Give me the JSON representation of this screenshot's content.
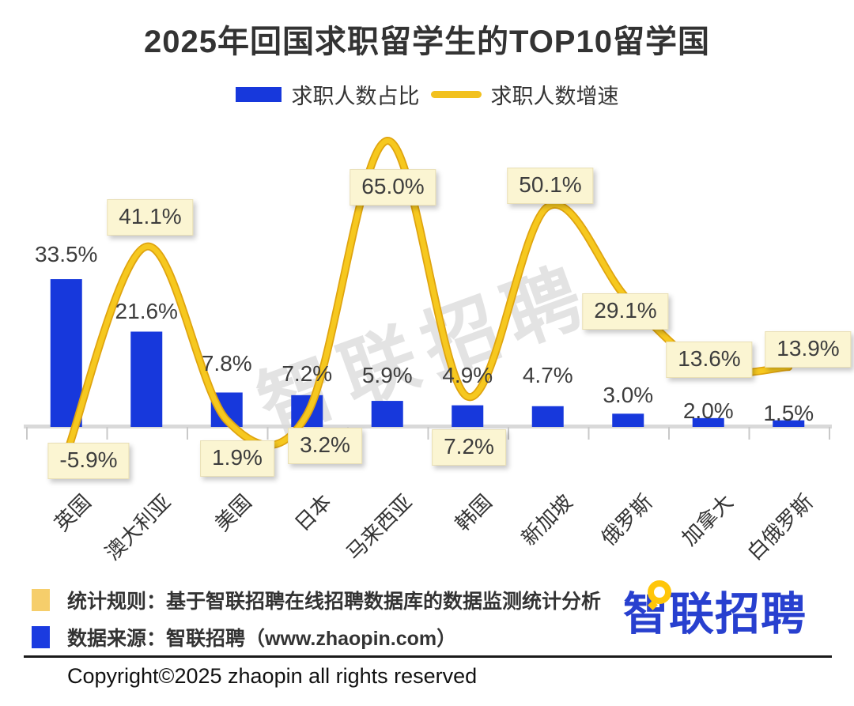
{
  "title": "2025年回国求职留学生的TOP10留学国",
  "legend": {
    "bar_label": "求职人数占比",
    "line_label": "求职人数增速"
  },
  "watermark": "智联招聘",
  "chart_data": {
    "type": "bar",
    "subtype": "combo-bar-line",
    "title": "2025年回国求职留学生的TOP10留学国",
    "categories": [
      "英国",
      "澳大利亚",
      "美国",
      "日本",
      "马来西亚",
      "韩国",
      "新加坡",
      "俄罗斯",
      "加拿大",
      "白俄罗斯"
    ],
    "series": [
      {
        "name": "求职人数占比",
        "type": "bar",
        "unit": "%",
        "values": [
          33.5,
          21.6,
          7.8,
          7.2,
          5.9,
          4.9,
          4.7,
          3.0,
          2.0,
          1.5
        ]
      },
      {
        "name": "求职人数增速",
        "type": "line",
        "unit": "%",
        "values": [
          -5.9,
          41.1,
          1.9,
          3.2,
          65.0,
          7.2,
          50.1,
          29.1,
          13.6,
          13.9
        ]
      }
    ],
    "value_label_format": "one-decimal-percent",
    "xlabel": "",
    "ylabel": "",
    "axes_visible": false,
    "gridlines": false,
    "legend_position": "top"
  },
  "colors": {
    "bar_blue": "#1738DC",
    "line_gold": "#F6C81F",
    "line_gold_dark": "#DFA40F",
    "label_box_bg": "#FBF5D2",
    "label_box_border": "#E9DFB5",
    "axis_gray": "#D9D9D9",
    "tick_gray": "#C9C9C9",
    "title_text": "#333333",
    "logo_blue": "#2840CF",
    "note_yellow": "#F6CE6B",
    "note_blue": "#1B3BE0"
  },
  "notes": {
    "rule": "统计规则：基于智联招聘在线招聘数据库的数据监测统计分析",
    "source": "数据来源：智联招聘（www.zhaopin.com）"
  },
  "logo": {
    "text": "智联招聘"
  },
  "copyright": "Copyright©2025 zhaopin all rights reserved"
}
